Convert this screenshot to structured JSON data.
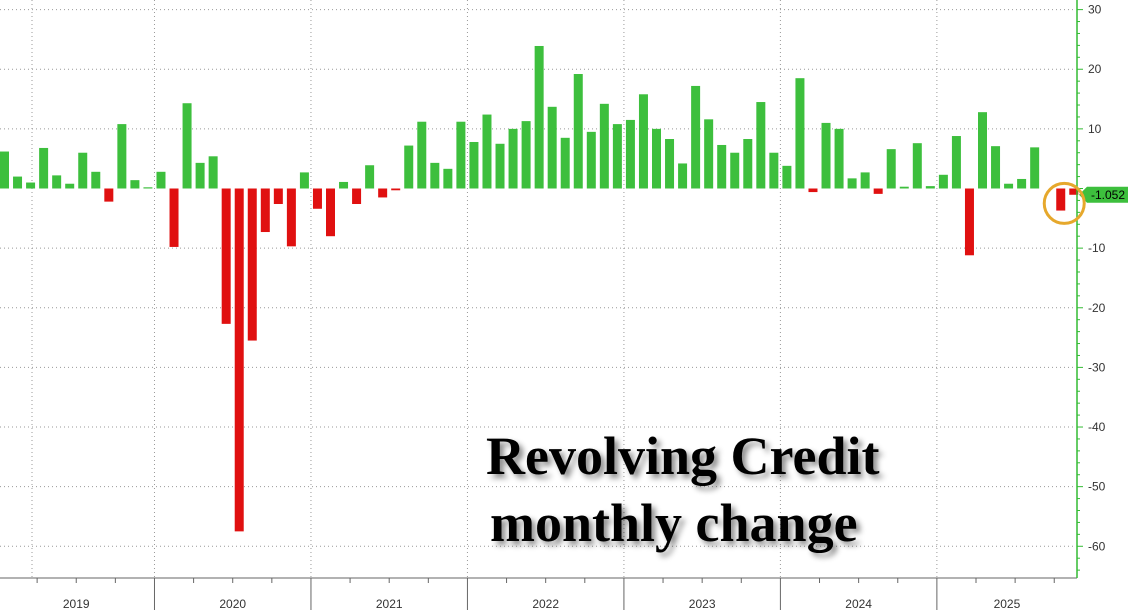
{
  "chart_data": {
    "type": "bar",
    "title_lines": [
      "Revolving Credit",
      "monthly change"
    ],
    "xlabel": "",
    "ylabel": "",
    "ylim": [
      -65,
      31
    ],
    "yticks": [
      30,
      20,
      10,
      -10,
      -20,
      -30,
      -40,
      -50,
      -60
    ],
    "year_labels": [
      "2019",
      "2020",
      "2021",
      "2022",
      "2023",
      "2024",
      "2025"
    ],
    "start_year": 2019,
    "values": [
      6.2,
      2.0,
      1.0,
      6.8,
      2.2,
      0.8,
      6.0,
      2.8,
      -2.2,
      10.8,
      1.4,
      0.2,
      2.8,
      -9.8,
      14.3,
      4.3,
      5.4,
      -22.7,
      -57.5,
      -25.5,
      -7.3,
      -2.6,
      -9.7,
      2.7,
      -3.4,
      -8.0,
      1.1,
      -2.6,
      3.9,
      -1.5,
      -0.3,
      7.2,
      11.2,
      4.3,
      3.3,
      11.2,
      7.8,
      12.4,
      7.5,
      10.0,
      11.3,
      23.9,
      13.7,
      8.5,
      19.2,
      9.5,
      14.2,
      10.8,
      11.5,
      15.8,
      10.0,
      8.3,
      4.2,
      17.2,
      11.6,
      7.3,
      6.0,
      8.3,
      14.5,
      6.0,
      3.8,
      18.5,
      -0.6,
      11.0,
      10.0,
      1.7,
      2.7,
      -0.9,
      6.6,
      0.3,
      7.6,
      0.4,
      2.3,
      8.8,
      -11.2,
      12.8,
      7.1,
      0.8,
      1.6,
      6.9,
      0.0,
      -3.7,
      -1.052
    ],
    "colors": {
      "positive": "#3dbf3d",
      "negative": "#e01010",
      "axis": "#33bb33",
      "grid": "#999999",
      "circle": "#e6a82c"
    },
    "last_value_label": "-1.052"
  }
}
